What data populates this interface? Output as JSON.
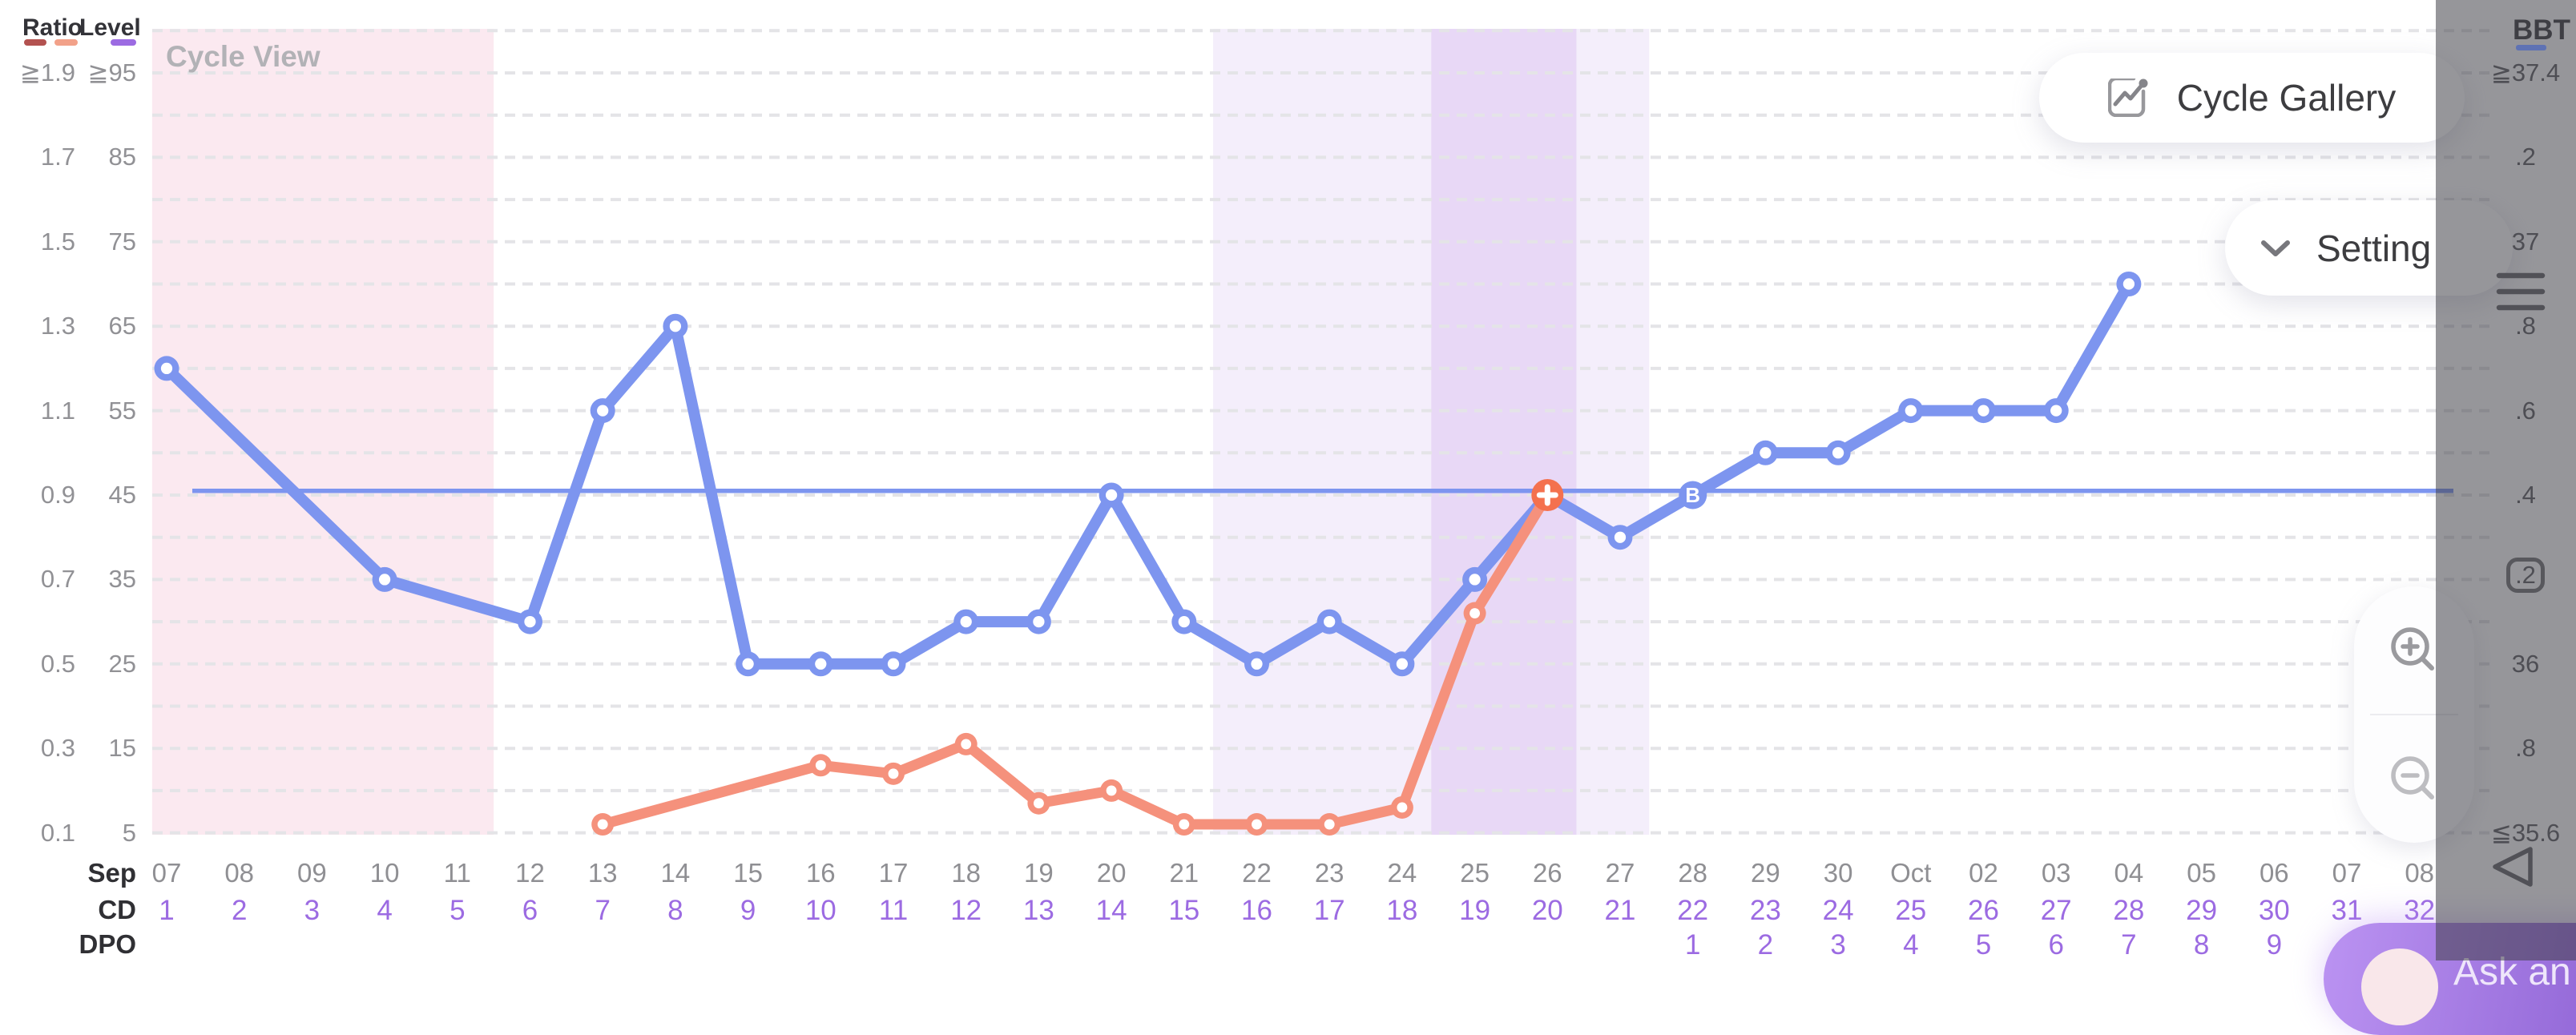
{
  "title": "Cycle View",
  "legend": {
    "ratio_label": "Ratio",
    "level_label": "Level"
  },
  "buttons": {
    "cycle_gallery": "Cycle Gallery",
    "setting": "Setting",
    "ask": "Ask an"
  },
  "axes": {
    "left": {
      "ratio_ticks": [
        "≧1.9",
        "1.7",
        "1.5",
        "1.3",
        "1.1",
        "0.9",
        "0.7",
        "0.5",
        "0.3",
        "0.1"
      ],
      "level_ticks": [
        "≧95",
        "85",
        "75",
        "65",
        "55",
        "45",
        "35",
        "25",
        "15",
        "5"
      ]
    },
    "right": {
      "label": "BBT",
      "ticks": [
        "≧37.4",
        ".2",
        "37",
        ".8",
        ".6",
        ".4",
        ".2",
        "36",
        ".8",
        "≦35.6"
      ],
      "boxed_tick_index": 6
    }
  },
  "x_axis": {
    "month_label": "Sep",
    "cd_label": "CD",
    "dpo_label": "DPO",
    "dates": [
      "07",
      "08",
      "09",
      "10",
      "11",
      "12",
      "13",
      "14",
      "15",
      "16",
      "17",
      "18",
      "19",
      "20",
      "21",
      "22",
      "23",
      "24",
      "25",
      "26",
      "27",
      "28",
      "29",
      "30",
      "Oct",
      "02",
      "03",
      "04",
      "05",
      "06",
      "07",
      "08"
    ],
    "cd": [
      "1",
      "2",
      "3",
      "4",
      "5",
      "6",
      "7",
      "8",
      "9",
      "10",
      "11",
      "12",
      "13",
      "14",
      "15",
      "16",
      "17",
      "18",
      "19",
      "20",
      "21",
      "22",
      "23",
      "24",
      "25",
      "26",
      "27",
      "28",
      "29",
      "30",
      "31",
      "32"
    ],
    "dpo": [
      "",
      "",
      "",
      "",
      "",
      "",
      "",
      "",
      "",
      "",
      "",
      "",
      "",
      "",
      "",
      "",
      "",
      "",
      "",
      "",
      "",
      "1",
      "2",
      "3",
      "4",
      "5",
      "6",
      "7",
      "8",
      "9",
      "",
      ""
    ]
  },
  "colors": {
    "bbt_line": "#7d95ef",
    "ratio_line": "#f5917c",
    "coverline": "#7d95ef",
    "positive_marker": "#f4714e",
    "ratio_legend_dark": "#b35250",
    "ratio_legend_light": "#f2a189",
    "level_legend": "#9c6be2",
    "cd_text": "#9c6be2",
    "gridline": "#e4e4e7",
    "period_band": "#fbe9f0",
    "fertile_band": "#f4eefb",
    "peak_band": "#e8d8f6"
  },
  "chart_data": {
    "type": "line",
    "title": "Cycle View",
    "x_dates": [
      "07",
      "08",
      "09",
      "10",
      "11",
      "12",
      "13",
      "14",
      "15",
      "16",
      "17",
      "18",
      "19",
      "20",
      "21",
      "22",
      "23",
      "24",
      "25",
      "26",
      "27",
      "28",
      "29",
      "30",
      "Oct",
      "02",
      "03",
      "04",
      "05",
      "06",
      "07",
      "08"
    ],
    "x_cycle_days": [
      1,
      2,
      3,
      4,
      5,
      6,
      7,
      8,
      9,
      10,
      11,
      12,
      13,
      14,
      15,
      16,
      17,
      18,
      19,
      20,
      21,
      22,
      23,
      24,
      25,
      26,
      27,
      28,
      29,
      30,
      31,
      32
    ],
    "left_axis": {
      "ratio_range": [
        0.1,
        1.9
      ],
      "level_range": [
        5,
        95
      ],
      "gridlines": "dashed, every 5 level-units"
    },
    "right_axis": {
      "bbt_range": [
        35.6,
        37.4
      ]
    },
    "coverline": {
      "level_units": 45.5,
      "bbt": 36.41
    },
    "bands": [
      {
        "name": "period",
        "from_day": -0.2,
        "to_day": 4.5,
        "days": "CD1-CD5 (Sep07-11)",
        "color": "#fbe9f0"
      },
      {
        "name": "fertile",
        "from_day": 14.4,
        "to_day": 17.4,
        "days": "CD15-CD17 (Sep21-24)",
        "color": "#f4eefb"
      },
      {
        "name": "peak",
        "from_day": 17.4,
        "to_day": 19.4,
        "days": "CD18-CD19 (Sep24-26)",
        "color": "#e8d8f6"
      },
      {
        "name": "fertile",
        "from_day": 19.4,
        "to_day": 20.4,
        "days": "CD20 (Sep26-27)",
        "color": "#f4eefb"
      }
    ],
    "series": [
      {
        "name": "BBT",
        "color_key": "bbt_line",
        "line_width": 14,
        "marker_r": 15.5,
        "points": [
          {
            "day_index": 0,
            "date": "07",
            "level_units": 60,
            "bbt": 36.7
          },
          {
            "day_index": 3,
            "date": "10",
            "level_units": 35,
            "bbt": 36.2
          },
          {
            "day_index": 5,
            "date": "12",
            "level_units": 30,
            "bbt": 36.1
          },
          {
            "day_index": 6,
            "date": "13",
            "level_units": 55,
            "bbt": 36.6
          },
          {
            "day_index": 7,
            "date": "14",
            "level_units": 65,
            "bbt": 36.8
          },
          {
            "day_index": 8,
            "date": "15",
            "level_units": 25,
            "bbt": 36.0
          },
          {
            "day_index": 9,
            "date": "16",
            "level_units": 25,
            "bbt": 36.0
          },
          {
            "day_index": 10,
            "date": "17",
            "level_units": 25,
            "bbt": 36.0
          },
          {
            "day_index": 11,
            "date": "18",
            "level_units": 30,
            "bbt": 36.1
          },
          {
            "day_index": 12,
            "date": "19",
            "level_units": 30,
            "bbt": 36.1
          },
          {
            "day_index": 13,
            "date": "20",
            "level_units": 45,
            "bbt": 36.4
          },
          {
            "day_index": 14,
            "date": "21",
            "level_units": 30,
            "bbt": 36.1
          },
          {
            "day_index": 15,
            "date": "22",
            "level_units": 25,
            "bbt": 36.0
          },
          {
            "day_index": 16,
            "date": "23",
            "level_units": 30,
            "bbt": 36.1
          },
          {
            "day_index": 17,
            "date": "24",
            "level_units": 25,
            "bbt": 36.0
          },
          {
            "day_index": 18,
            "date": "25",
            "level_units": 35,
            "bbt": 36.2
          },
          {
            "day_index": 19,
            "date": "26",
            "level_units": 45,
            "bbt": 36.4
          },
          {
            "day_index": 20,
            "date": "27",
            "level_units": 40,
            "bbt": 36.3
          },
          {
            "day_index": 21,
            "date": "28",
            "level_units": 45,
            "bbt": 36.4
          },
          {
            "day_index": 22,
            "date": "29",
            "level_units": 50,
            "bbt": 36.5
          },
          {
            "day_index": 23,
            "date": "30",
            "level_units": 50,
            "bbt": 36.5
          },
          {
            "day_index": 24,
            "date": "Oct",
            "level_units": 55,
            "bbt": 36.6
          },
          {
            "day_index": 25,
            "date": "02",
            "level_units": 55,
            "bbt": 36.6
          },
          {
            "day_index": 26,
            "date": "03",
            "level_units": 55,
            "bbt": 36.6
          },
          {
            "day_index": 27,
            "date": "04",
            "level_units": 70,
            "bbt": 36.9
          }
        ]
      },
      {
        "name": "Ratio",
        "color_key": "ratio_line",
        "line_width": 13,
        "marker_r": 14,
        "points": [
          {
            "day_index": 6,
            "date": "13",
            "level_units": 6,
            "ratio": 0.12
          },
          {
            "day_index": 9,
            "date": "16",
            "level_units": 13,
            "ratio": 0.26
          },
          {
            "day_index": 10,
            "date": "17",
            "level_units": 12,
            "ratio": 0.24
          },
          {
            "day_index": 11,
            "date": "18",
            "level_units": 15.5,
            "ratio": 0.31
          },
          {
            "day_index": 12,
            "date": "19",
            "level_units": 8.5,
            "ratio": 0.17
          },
          {
            "day_index": 13,
            "date": "20",
            "level_units": 10,
            "ratio": 0.2
          },
          {
            "day_index": 14,
            "date": "21",
            "level_units": 6,
            "ratio": 0.12
          },
          {
            "day_index": 15,
            "date": "22",
            "level_units": 6,
            "ratio": 0.12
          },
          {
            "day_index": 16,
            "date": "23",
            "level_units": 6,
            "ratio": 0.12
          },
          {
            "day_index": 17,
            "date": "24",
            "level_units": 8,
            "ratio": 0.16
          },
          {
            "day_index": 18,
            "date": "25",
            "level_units": 31,
            "ratio": 0.62
          },
          {
            "day_index": 19,
            "date": "26",
            "level_units": 45,
            "ratio": 0.9
          }
        ]
      }
    ],
    "special_markers": [
      {
        "type": "positive-test-plus",
        "series": "Ratio",
        "day_index": 19,
        "date": "26",
        "level_units": 45,
        "glyph": "+"
      },
      {
        "type": "bbt-rise-B",
        "series": "BBT",
        "day_index": 21,
        "date": "28",
        "level_units": 45,
        "glyph": "B"
      }
    ],
    "legend_position": "top-left",
    "grid": "on"
  }
}
